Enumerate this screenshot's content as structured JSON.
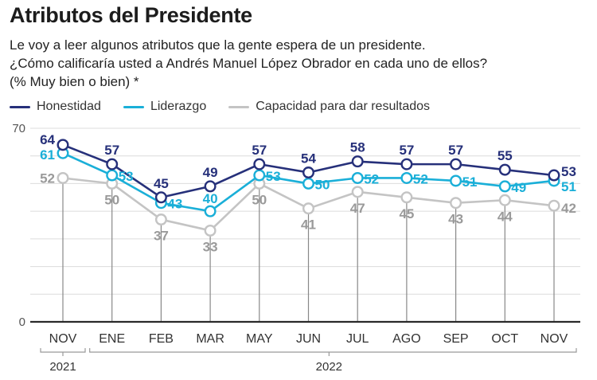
{
  "title": "Atributos del Presidente",
  "subtitle_lines": [
    "Le voy a leer algunos atributos que la gente espera de un presidente.",
    "¿Cómo calificaría usted a Andrés Manuel López Obrador en cada uno de ellos?",
    "(% Muy bien o bien) *"
  ],
  "colors": {
    "honestidad": "#26307a",
    "liderazgo": "#1aafd8",
    "capacidad": "#c4c4c4",
    "capacidad_label": "#9a9a9a",
    "grid": "#dcdcdc",
    "axis": "#2a2a2a",
    "vline": "#888888"
  },
  "chart_data": {
    "type": "line",
    "title": "Atributos del Presidente",
    "ylabel": "% Muy bien o bien",
    "xlabel": "",
    "ylim": [
      0,
      70
    ],
    "y_ticks_labeled": [
      0,
      70
    ],
    "grid_step": 10,
    "grid": true,
    "legend_position": "top-left",
    "categories": [
      "NOV",
      "ENE",
      "FEB",
      "MAR",
      "MAY",
      "JUN",
      "JUL",
      "AGO",
      "SEP",
      "OCT",
      "NOV"
    ],
    "year_groups": [
      {
        "label": "2021",
        "from": 0,
        "to": 0
      },
      {
        "label": "2022",
        "from": 1,
        "to": 10
      }
    ],
    "series": [
      {
        "name": "Honestidad",
        "key": "honestidad",
        "values": [
          64,
          57,
          45,
          49,
          57,
          54,
          58,
          57,
          57,
          55,
          53
        ]
      },
      {
        "name": "Liderazgo",
        "key": "liderazgo",
        "values": [
          61,
          53,
          43,
          40,
          53,
          50,
          52,
          52,
          51,
          49,
          51
        ]
      },
      {
        "name": "Capacidad para dar resultados",
        "key": "capacidad",
        "values": [
          52,
          50,
          37,
          33,
          50,
          41,
          47,
          45,
          43,
          44,
          42
        ]
      }
    ]
  }
}
